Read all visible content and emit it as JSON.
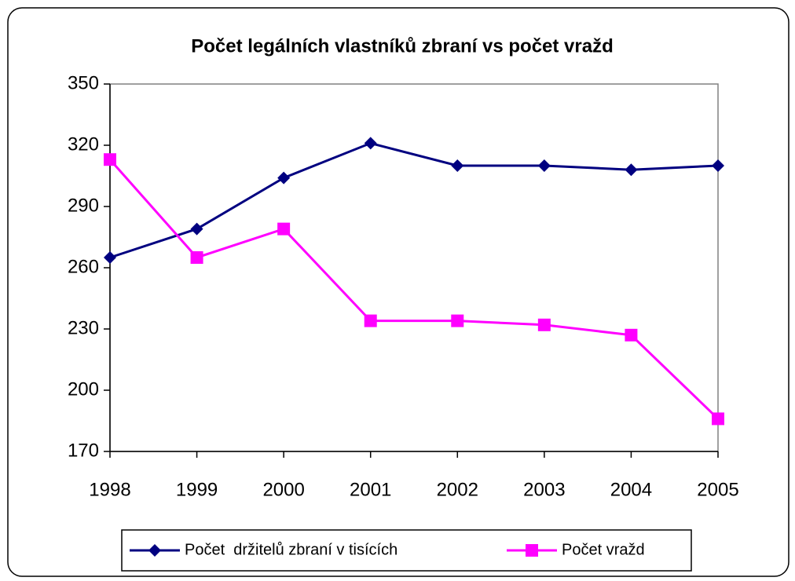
{
  "chart_data": {
    "type": "line",
    "title": "Počet legálních vlastníků zbraní vs počet vražd",
    "categories": [
      "1998",
      "1999",
      "2000",
      "2001",
      "2002",
      "2003",
      "2004",
      "2005"
    ],
    "series": [
      {
        "name": "Počet  držitelů zbraní v tisících",
        "color": "#000080",
        "marker": "diamond",
        "values": [
          265,
          279,
          304,
          321,
          310,
          310,
          308,
          310
        ]
      },
      {
        "name": "Počet vražd",
        "color": "#ff00ff",
        "marker": "square",
        "values": [
          313,
          265,
          279,
          234,
          234,
          232,
          227,
          186
        ]
      }
    ],
    "ylim": [
      170,
      350
    ],
    "yticks": [
      170,
      200,
      230,
      260,
      290,
      320,
      350
    ],
    "legend": "bottom"
  }
}
